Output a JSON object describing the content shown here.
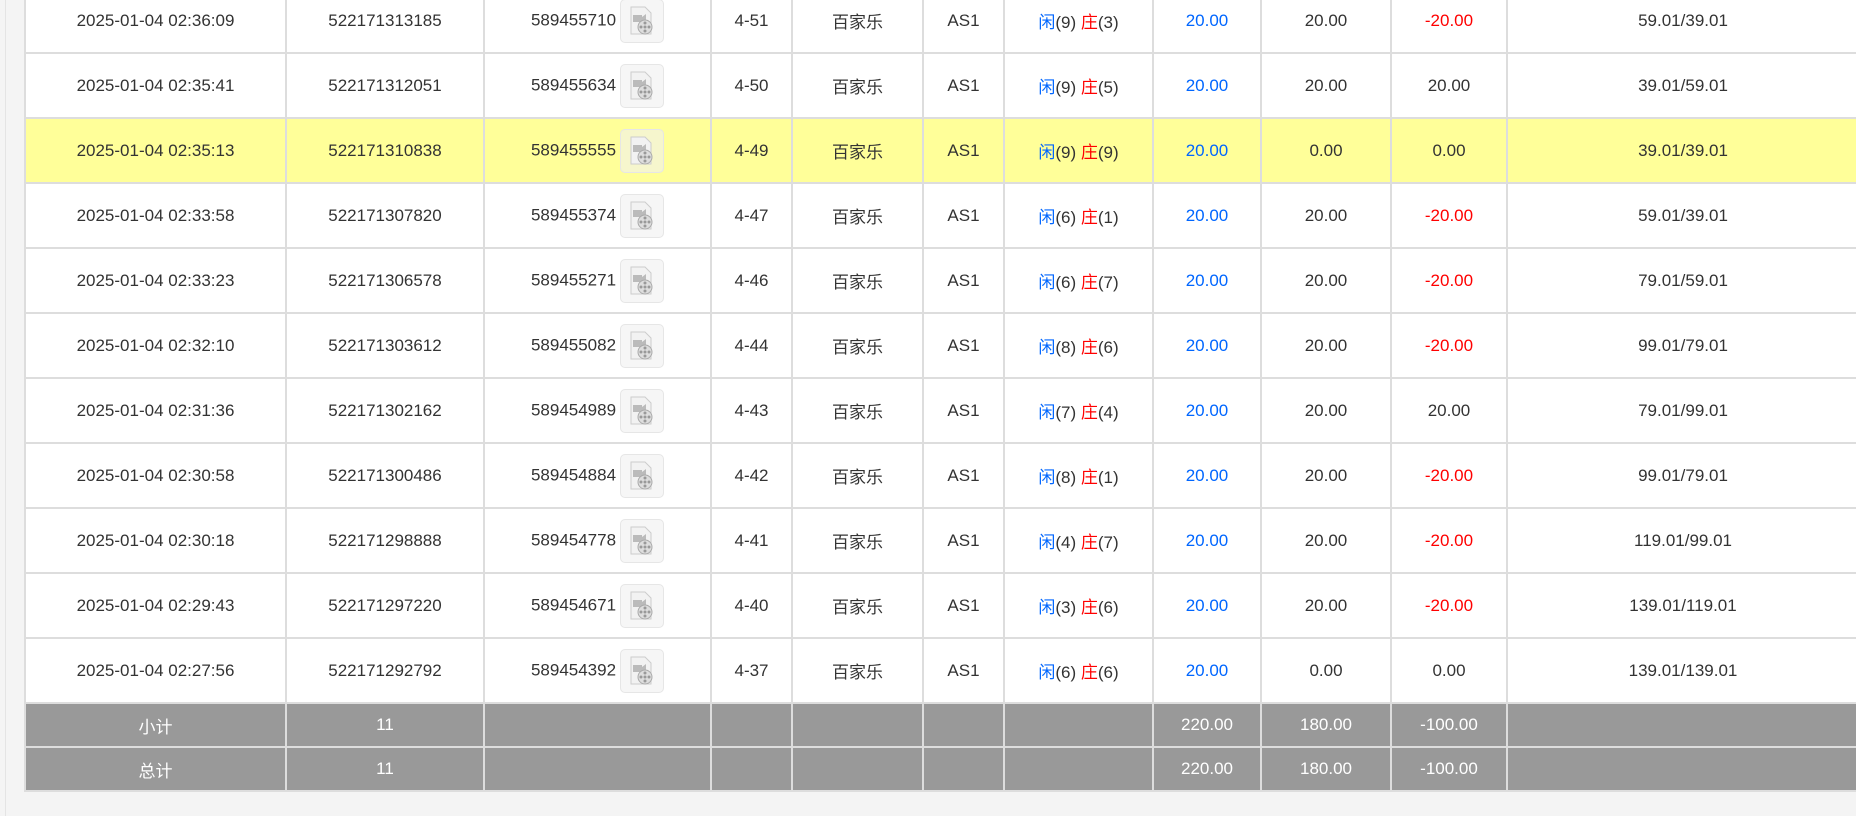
{
  "rows": [
    {
      "time": "2025-01-04 02:36:09",
      "bet_id": "522171313185",
      "game_id": "589455710",
      "round": "4-51",
      "game": "百家乐",
      "table": "AS1",
      "player": "闲",
      "player_pts": "(9)",
      "banker": "庄",
      "banker_pts": "(3)",
      "bet": "20.00",
      "valid": "20.00",
      "win": "-20.00",
      "balance": "59.01/39.01",
      "highlight": false
    },
    {
      "time": "2025-01-04 02:35:41",
      "bet_id": "522171312051",
      "game_id": "589455634",
      "round": "4-50",
      "game": "百家乐",
      "table": "AS1",
      "player": "闲",
      "player_pts": "(9)",
      "banker": "庄",
      "banker_pts": "(5)",
      "bet": "20.00",
      "valid": "20.00",
      "win": "20.00",
      "balance": "39.01/59.01",
      "highlight": false
    },
    {
      "time": "2025-01-04 02:35:13",
      "bet_id": "522171310838",
      "game_id": "589455555",
      "round": "4-49",
      "game": "百家乐",
      "table": "AS1",
      "player": "闲",
      "player_pts": "(9)",
      "banker": "庄",
      "banker_pts": "(9)",
      "bet": "20.00",
      "valid": "0.00",
      "win": "0.00",
      "balance": "39.01/39.01",
      "highlight": true
    },
    {
      "time": "2025-01-04 02:33:58",
      "bet_id": "522171307820",
      "game_id": "589455374",
      "round": "4-47",
      "game": "百家乐",
      "table": "AS1",
      "player": "闲",
      "player_pts": "(6)",
      "banker": "庄",
      "banker_pts": "(1)",
      "bet": "20.00",
      "valid": "20.00",
      "win": "-20.00",
      "balance": "59.01/39.01",
      "highlight": false
    },
    {
      "time": "2025-01-04 02:33:23",
      "bet_id": "522171306578",
      "game_id": "589455271",
      "round": "4-46",
      "game": "百家乐",
      "table": "AS1",
      "player": "闲",
      "player_pts": "(6)",
      "banker": "庄",
      "banker_pts": "(7)",
      "bet": "20.00",
      "valid": "20.00",
      "win": "-20.00",
      "balance": "79.01/59.01",
      "highlight": false
    },
    {
      "time": "2025-01-04 02:32:10",
      "bet_id": "522171303612",
      "game_id": "589455082",
      "round": "4-44",
      "game": "百家乐",
      "table": "AS1",
      "player": "闲",
      "player_pts": "(8)",
      "banker": "庄",
      "banker_pts": "(6)",
      "bet": "20.00",
      "valid": "20.00",
      "win": "-20.00",
      "balance": "99.01/79.01",
      "highlight": false
    },
    {
      "time": "2025-01-04 02:31:36",
      "bet_id": "522171302162",
      "game_id": "589454989",
      "round": "4-43",
      "game": "百家乐",
      "table": "AS1",
      "player": "闲",
      "player_pts": "(7)",
      "banker": "庄",
      "banker_pts": "(4)",
      "bet": "20.00",
      "valid": "20.00",
      "win": "20.00",
      "balance": "79.01/99.01",
      "highlight": false
    },
    {
      "time": "2025-01-04 02:30:58",
      "bet_id": "522171300486",
      "game_id": "589454884",
      "round": "4-42",
      "game": "百家乐",
      "table": "AS1",
      "player": "闲",
      "player_pts": "(8)",
      "banker": "庄",
      "banker_pts": "(1)",
      "bet": "20.00",
      "valid": "20.00",
      "win": "-20.00",
      "balance": "99.01/79.01",
      "highlight": false
    },
    {
      "time": "2025-01-04 02:30:18",
      "bet_id": "522171298888",
      "game_id": "589454778",
      "round": "4-41",
      "game": "百家乐",
      "table": "AS1",
      "player": "闲",
      "player_pts": "(4)",
      "banker": "庄",
      "banker_pts": "(7)",
      "bet": "20.00",
      "valid": "20.00",
      "win": "-20.00",
      "balance": "119.01/99.01",
      "highlight": false
    },
    {
      "time": "2025-01-04 02:29:43",
      "bet_id": "522171297220",
      "game_id": "589454671",
      "round": "4-40",
      "game": "百家乐",
      "table": "AS1",
      "player": "闲",
      "player_pts": "(3)",
      "banker": "庄",
      "banker_pts": "(6)",
      "bet": "20.00",
      "valid": "20.00",
      "win": "-20.00",
      "balance": "139.01/119.01",
      "highlight": false
    },
    {
      "time": "2025-01-04 02:27:56",
      "bet_id": "522171292792",
      "game_id": "589454392",
      "round": "4-37",
      "game": "百家乐",
      "table": "AS1",
      "player": "闲",
      "player_pts": "(6)",
      "banker": "庄",
      "banker_pts": "(6)",
      "bet": "20.00",
      "valid": "0.00",
      "win": "0.00",
      "balance": "139.01/139.01",
      "highlight": false
    }
  ],
  "summary": [
    {
      "label": "小计",
      "count": "11",
      "bet": "220.00",
      "valid": "180.00",
      "win": "-100.00"
    },
    {
      "label": "总计",
      "count": "11",
      "bet": "220.00",
      "valid": "180.00",
      "win": "-100.00"
    }
  ],
  "colors": {
    "highlight": "#ffff99",
    "player": "#0066ff",
    "banker": "#ff0000",
    "negative": "#ff0000",
    "summary_bg": "#999999"
  }
}
